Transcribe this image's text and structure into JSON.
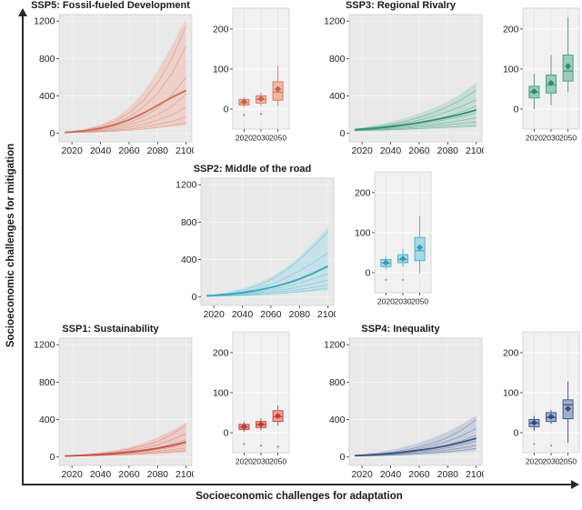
{
  "figure": {
    "y_axis_label": "Socioeconomic challenges for mitigation",
    "x_axis_label": "Socioeconomic challenges for adaptation"
  },
  "chart_data": [
    {
      "id": "ssp5",
      "title": "SSP5: Fossil-fueled Development",
      "type": "line+box",
      "colors": {
        "median": "#cc6b5a",
        "band": "#efbcae",
        "member": "#d9917d",
        "box_fill": "#f3b5a4",
        "box_border": "#d6806b",
        "mean": "#c05948",
        "outlier": "#b08b84"
      },
      "main": {
        "type": "line",
        "x": [
          2015,
          2020,
          2030,
          2040,
          2050,
          2060,
          2070,
          2080,
          2090,
          2100
        ],
        "xticks": [
          2020,
          2040,
          2060,
          2080,
          2100
        ],
        "yticks": [
          0,
          400,
          800,
          1200
        ],
        "xlim": [
          2011,
          2104
        ],
        "ylim": [
          -90,
          1270
        ],
        "median": [
          10,
          15,
          30,
          55,
          92,
          145,
          215,
          300,
          385,
          460
        ],
        "band_upper": [
          16,
          24,
          52,
          95,
          165,
          275,
          440,
          670,
          940,
          1230
        ],
        "band_lower": [
          4,
          6,
          10,
          16,
          24,
          34,
          46,
          60,
          72,
          85
        ],
        "members": [
          [
            12,
            18,
            40,
            75,
            130,
            220,
            350,
            540,
            800,
            1150
          ],
          [
            10,
            15,
            32,
            60,
            105,
            175,
            280,
            430,
            640,
            930
          ],
          [
            10,
            14,
            26,
            45,
            75,
            115,
            180,
            270,
            410,
            600
          ],
          [
            8,
            12,
            22,
            36,
            58,
            90,
            135,
            200,
            290,
            420
          ],
          [
            8,
            11,
            18,
            28,
            44,
            65,
            95,
            140,
            200,
            280
          ],
          [
            6,
            9,
            14,
            21,
            32,
            46,
            66,
            95,
            130,
            175
          ],
          [
            5,
            8,
            12,
            17,
            24,
            33,
            46,
            63,
            85,
            115
          ]
        ]
      },
      "box": {
        "type": "box",
        "categories": [
          "2020",
          "2030",
          "2050"
        ],
        "yticks": [
          0,
          100,
          200
        ],
        "ylim": [
          -50,
          252
        ],
        "stats": [
          {
            "low": 5,
            "q1": 10,
            "median": 16,
            "q3": 24,
            "high": 30,
            "mean": 18,
            "outliers": [
              -15
            ]
          },
          {
            "low": 8,
            "q1": 15,
            "median": 24,
            "q3": 33,
            "high": 42,
            "mean": 26,
            "outliers": [
              -12
            ]
          },
          {
            "low": 8,
            "q1": 22,
            "median": 42,
            "q3": 68,
            "high": 108,
            "mean": 50,
            "outliers": []
          }
        ]
      }
    },
    {
      "id": "ssp3",
      "title": "SSP3: Regional Rivalry",
      "type": "line+box",
      "colors": {
        "median": "#2f8f76",
        "band": "#a9d4c4",
        "member": "#64ab96",
        "box_fill": "#9bccb8",
        "box_border": "#4f9f87",
        "mean": "#2c7f6a",
        "outlier": "#7fa89c"
      },
      "main": {
        "type": "line",
        "x": [
          2015,
          2020,
          2030,
          2040,
          2050,
          2060,
          2070,
          2080,
          2090,
          2100
        ],
        "xticks": [
          2020,
          2040,
          2060,
          2080,
          2100
        ],
        "yticks": [
          0,
          400,
          800,
          1200
        ],
        "xlim": [
          2011,
          2104
        ],
        "ylim": [
          -90,
          1270
        ],
        "median": [
          40,
          44,
          56,
          72,
          92,
          115,
          142,
          172,
          208,
          250
        ],
        "band_upper": [
          58,
          66,
          92,
          124,
          164,
          212,
          270,
          340,
          430,
          545
        ],
        "band_lower": [
          22,
          24,
          29,
          34,
          39,
          44,
          49,
          53,
          58,
          62
        ],
        "members": [
          [
            45,
            52,
            72,
            98,
            130,
            170,
            220,
            285,
            365,
            460
          ],
          [
            42,
            48,
            64,
            84,
            110,
            142,
            182,
            232,
            290,
            360
          ],
          [
            40,
            45,
            58,
            74,
            94,
            118,
            148,
            185,
            232,
            290
          ],
          [
            38,
            42,
            52,
            64,
            80,
            98,
            122,
            150,
            182,
            220
          ],
          [
            35,
            38,
            46,
            55,
            66,
            80,
            97,
            117,
            140,
            165
          ],
          [
            32,
            35,
            40,
            47,
            56,
            66,
            79,
            92,
            106,
            120
          ],
          [
            28,
            30,
            34,
            39,
            45,
            52,
            60,
            68,
            77,
            85
          ]
        ]
      },
      "box": {
        "type": "box",
        "categories": [
          "2020",
          "2030",
          "2050"
        ],
        "yticks": [
          0,
          100,
          200
        ],
        "ylim": [
          -50,
          252
        ],
        "stats": [
          {
            "low": 0,
            "q1": 28,
            "median": 42,
            "q3": 57,
            "high": 88,
            "mean": 44,
            "outliers": []
          },
          {
            "low": 10,
            "q1": 40,
            "median": 60,
            "q3": 85,
            "high": 135,
            "mean": 65,
            "outliers": []
          },
          {
            "low": 42,
            "q1": 70,
            "median": 95,
            "q3": 135,
            "high": 230,
            "mean": 107,
            "outliers": []
          }
        ]
      }
    },
    {
      "id": "ssp2",
      "title": "SSP2: Middle of the road",
      "type": "line+box",
      "colors": {
        "median": "#3aa4bd",
        "band": "#aadde8",
        "member": "#6fc2d3",
        "box_fill": "#a5dae6",
        "box_border": "#52b2c8",
        "mean": "#2f93ad",
        "outlier": "#86aeb8"
      },
      "main": {
        "type": "line",
        "x": [
          2015,
          2020,
          2030,
          2040,
          2050,
          2060,
          2070,
          2080,
          2090,
          2100
        ],
        "xticks": [
          2020,
          2040,
          2060,
          2080,
          2100
        ],
        "yticks": [
          0,
          400,
          800,
          1200
        ],
        "xlim": [
          2011,
          2104
        ],
        "ylim": [
          -90,
          1270
        ],
        "median": [
          14,
          17,
          29,
          46,
          70,
          102,
          142,
          192,
          255,
          330
        ],
        "band_upper": [
          24,
          30,
          56,
          92,
          142,
          212,
          310,
          435,
          585,
          750
        ],
        "band_lower": [
          4,
          6,
          9,
          14,
          21,
          29,
          39,
          50,
          60,
          70
        ],
        "members": [
          [
            15,
            20,
            40,
            72,
            118,
            185,
            280,
            400,
            545,
            700
          ],
          [
            13,
            17,
            32,
            55,
            88,
            135,
            200,
            280,
            370,
            470
          ],
          [
            12,
            15,
            26,
            43,
            67,
            100,
            145,
            200,
            265,
            340
          ],
          [
            10,
            13,
            22,
            35,
            53,
            78,
            110,
            150,
            197,
            250
          ],
          [
            9,
            12,
            18,
            28,
            41,
            59,
            82,
            110,
            143,
            180
          ],
          [
            8,
            10,
            15,
            22,
            31,
            44,
            60,
            80,
            103,
            130
          ],
          [
            6,
            8,
            12,
            17,
            23,
            31,
            42,
            56,
            74,
            95
          ]
        ]
      },
      "box": {
        "type": "box",
        "categories": [
          "2020",
          "2030",
          "2050"
        ],
        "yticks": [
          0,
          100,
          200
        ],
        "ylim": [
          -50,
          252
        ],
        "stats": [
          {
            "low": 8,
            "q1": 15,
            "median": 24,
            "q3": 33,
            "high": 40,
            "mean": 25,
            "outliers": [
              -18
            ]
          },
          {
            "low": 15,
            "q1": 25,
            "median": 33,
            "q3": 45,
            "high": 60,
            "mean": 35,
            "outliers": [
              -18
            ]
          },
          {
            "low": -2,
            "q1": 30,
            "median": 55,
            "q3": 88,
            "high": 142,
            "mean": 63,
            "outliers": []
          }
        ]
      }
    },
    {
      "id": "ssp1",
      "title": "SSP1: Sustainability",
      "type": "line+box",
      "colors": {
        "median": "#c64f45",
        "band": "#efb4ab",
        "member": "#d5837a",
        "box_fill": "#ee9d94",
        "box_border": "#c64f45",
        "mean": "#b03a32",
        "outlier": "#ad8680"
      },
      "main": {
        "type": "line",
        "x": [
          2015,
          2020,
          2030,
          2040,
          2050,
          2060,
          2070,
          2080,
          2090,
          2100
        ],
        "xticks": [
          2020,
          2040,
          2060,
          2080,
          2100
        ],
        "yticks": [
          0,
          400,
          800,
          1200
        ],
        "xlim": [
          2011,
          2104
        ],
        "ylim": [
          -90,
          1270
        ],
        "median": [
          11,
          13,
          19,
          27,
          38,
          52,
          70,
          93,
          123,
          160
        ],
        "band_upper": [
          17,
          21,
          33,
          50,
          73,
          105,
          150,
          210,
          285,
          370
        ],
        "band_lower": [
          5,
          6,
          8,
          11,
          15,
          19,
          25,
          31,
          40,
          50
        ],
        "members": [
          [
            12,
            15,
            25,
            39,
            58,
            85,
            120,
            165,
            245,
            340
          ],
          [
            11,
            14,
            22,
            33,
            48,
            68,
            95,
            130,
            185,
            250
          ],
          [
            10,
            13,
            19,
            28,
            40,
            55,
            75,
            100,
            140,
            185
          ],
          [
            9,
            11,
            16,
            23,
            32,
            44,
            59,
            78,
            103,
            135
          ],
          [
            8,
            10,
            14,
            19,
            26,
            35,
            46,
            60,
            77,
            98
          ],
          [
            7,
            9,
            12,
            16,
            21,
            27,
            35,
            45,
            56,
            70
          ]
        ]
      },
      "box": {
        "type": "box",
        "categories": [
          "2020",
          "2030",
          "2050"
        ],
        "yticks": [
          0,
          100,
          200
        ],
        "ylim": [
          -50,
          252
        ],
        "stats": [
          {
            "low": 2,
            "q1": 8,
            "median": 14,
            "q3": 21,
            "high": 28,
            "mean": 15,
            "outliers": [
              -28
            ]
          },
          {
            "low": 6,
            "q1": 13,
            "median": 20,
            "q3": 28,
            "high": 36,
            "mean": 21,
            "outliers": [
              -32
            ]
          },
          {
            "low": 18,
            "q1": 28,
            "median": 40,
            "q3": 55,
            "high": 68,
            "mean": 42,
            "outliers": [
              -35
            ]
          }
        ]
      }
    },
    {
      "id": "ssp4",
      "title": "SSP4: Inequality",
      "type": "line+box",
      "colors": {
        "median": "#3d5480",
        "band": "#aeb9d1",
        "member": "#6d7fa3",
        "box_fill": "#9fb1cd",
        "box_border": "#41598c",
        "mean": "#2f4575",
        "outlier": "#8f99ab"
      },
      "main": {
        "type": "line",
        "x": [
          2015,
          2020,
          2030,
          2040,
          2050,
          2060,
          2070,
          2080,
          2090,
          2100
        ],
        "xticks": [
          2020,
          2040,
          2060,
          2080,
          2100
        ],
        "yticks": [
          0,
          400,
          800,
          1200
        ],
        "xlim": [
          2011,
          2104
        ],
        "ylim": [
          -90,
          1270
        ],
        "median": [
          15,
          18,
          27,
          38,
          53,
          72,
          95,
          123,
          158,
          200
        ],
        "band_upper": [
          26,
          32,
          50,
          76,
          110,
          152,
          205,
          272,
          350,
          445
        ],
        "band_lower": [
          7,
          8,
          11,
          15,
          20,
          26,
          33,
          42,
          52,
          62
        ],
        "members": [
          [
            16,
            20,
            32,
            50,
            74,
            107,
            150,
            208,
            290,
            400
          ],
          [
            14,
            18,
            28,
            42,
            62,
            88,
            123,
            168,
            228,
            305
          ],
          [
            13,
            16,
            24,
            35,
            50,
            70,
            96,
            130,
            175,
            230
          ],
          [
            12,
            14,
            20,
            29,
            40,
            55,
            74,
            98,
            130,
            170
          ],
          [
            10,
            12,
            17,
            23,
            32,
            43,
            57,
            75,
            97,
            125
          ],
          [
            9,
            11,
            14,
            19,
            25,
            33,
            43,
            56,
            72,
            92
          ]
        ]
      },
      "box": {
        "type": "box",
        "categories": [
          "2020",
          "2030",
          "2050"
        ],
        "yticks": [
          0,
          100,
          200
        ],
        "ylim": [
          -50,
          252
        ],
        "stats": [
          {
            "low": 5,
            "q1": 15,
            "median": 24,
            "q3": 33,
            "high": 42,
            "mean": 25,
            "outliers": [
              -28
            ]
          },
          {
            "low": 22,
            "q1": 28,
            "median": 38,
            "q3": 50,
            "high": 57,
            "mean": 40,
            "outliers": [
              -32
            ]
          },
          {
            "low": -25,
            "q1": 35,
            "median": 70,
            "q3": 82,
            "high": 128,
            "mean": 60,
            "outliers": []
          }
        ]
      }
    }
  ]
}
